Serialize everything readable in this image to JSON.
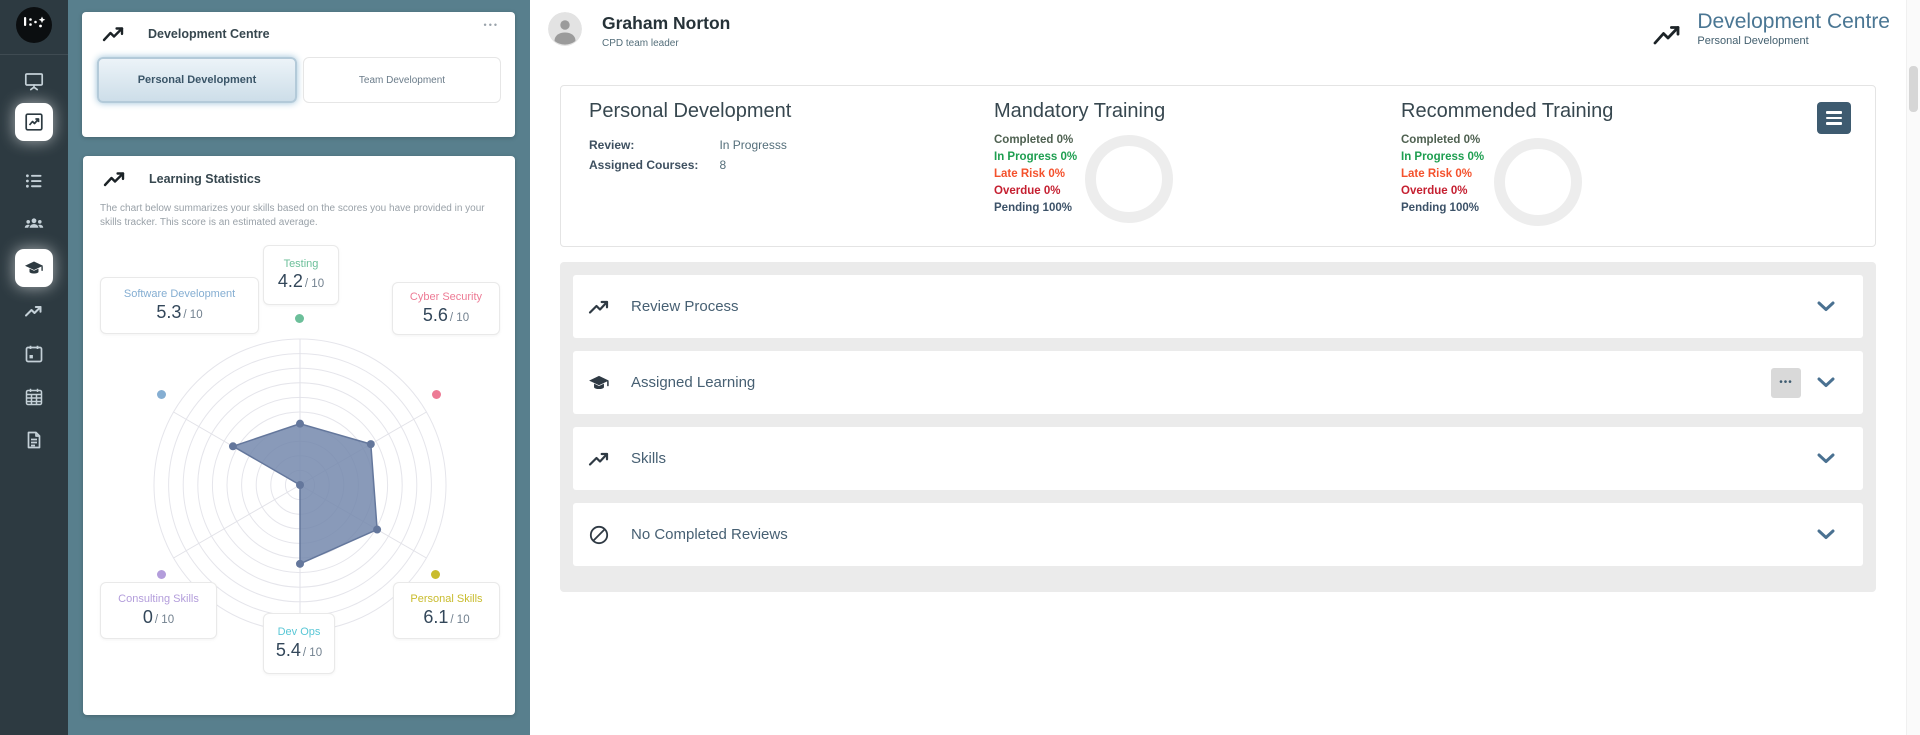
{
  "icons": {
    "ellipsis": "•••"
  },
  "sidebar": {
    "items": [
      {
        "icon": "monitor-icon",
        "active": false
      },
      {
        "icon": "chart-box-icon",
        "active": true
      },
      {
        "icon": "list-icon",
        "active": false
      },
      {
        "icon": "users-icon",
        "active": false
      },
      {
        "icon": "graduation-icon",
        "active": true
      },
      {
        "icon": "trend-icon",
        "active": false
      },
      {
        "icon": "calendar-icon",
        "active": false
      },
      {
        "icon": "calendar-grid-icon",
        "active": false
      },
      {
        "icon": "document-icon",
        "active": false
      }
    ]
  },
  "panel": {
    "dev_centre": {
      "title": "Development Centre",
      "tabs": [
        {
          "label": "Personal Development",
          "active": true
        },
        {
          "label": "Team Development",
          "active": false
        }
      ]
    },
    "learning_stats": {
      "title": "Learning Statistics",
      "description": "The chart below summarizes your skills based on the scores you have provided in your skills tracker. This score is an estimated average."
    }
  },
  "chart_data": {
    "type": "radar",
    "title": "Learning Statistics skills radar",
    "max": 10,
    "out_of": "/ 10",
    "rings": 10,
    "fill": "#7488ad",
    "fill_opacity": 0.85,
    "stroke": "#64779c",
    "axes": [
      {
        "label": "Testing",
        "value": 4.2,
        "color": "#6cbf9a"
      },
      {
        "label": "Cyber Security",
        "value": 5.6,
        "color": "#ed7b95"
      },
      {
        "label": "Personal Skills",
        "value": 6.1,
        "color": "#c9bc2e"
      },
      {
        "label": "Dev Ops",
        "value": 5.4,
        "color": "#59c7d6"
      },
      {
        "label": "Consulting Skills",
        "value": 0,
        "color": "#b39ddb"
      },
      {
        "label": "Software Development",
        "value": 5.3,
        "color": "#85aed2"
      }
    ]
  },
  "main": {
    "user": {
      "name": "Graham Norton",
      "role": "CPD team leader"
    },
    "page": {
      "title": "Development Centre",
      "subtitle": "Personal Development"
    },
    "summary": {
      "personal": {
        "title": "Personal Development",
        "review_label": "Review:",
        "review_value": "In Progresss",
        "courses_label": "Assigned Courses:",
        "courses_value": "8"
      },
      "mandatory": {
        "title": "Mandatory Training",
        "stats": [
          {
            "label": "Completed 0%",
            "color": "#4f6151"
          },
          {
            "label": "In Progress 0%",
            "color": "#1e9e50"
          },
          {
            "label": "Late Risk 0%",
            "color": "#f4512c"
          },
          {
            "label": "Overdue 0%",
            "color": "#c51f30"
          },
          {
            "label": "Pending 100%",
            "color": "#3c5268"
          }
        ]
      },
      "recommended": {
        "title": "Recommended Training",
        "stats": [
          {
            "label": "Completed 0%",
            "color": "#4f6151"
          },
          {
            "label": "In Progress 0%",
            "color": "#1e9e50"
          },
          {
            "label": "Late Risk 0%",
            "color": "#f4512c"
          },
          {
            "label": "Overdue 0%",
            "color": "#c51f30"
          },
          {
            "label": "Pending 100%",
            "color": "#3c5268"
          }
        ]
      }
    },
    "accordion": {
      "items": [
        {
          "icon": "trend-icon",
          "label": "Review Process"
        },
        {
          "icon": "graduation-icon",
          "label": "Assigned Learning",
          "has_menu": true
        },
        {
          "icon": "trend-icon",
          "label": "Skills"
        },
        {
          "icon": "no-entry-icon",
          "label": "No Completed Reviews"
        }
      ]
    }
  },
  "colors": {
    "sidebar_bg": "#2d3a41",
    "panel_bg": "#587f8d",
    "accent_blue": "#4a7693",
    "hamburger_bg": "#3e5b70"
  }
}
